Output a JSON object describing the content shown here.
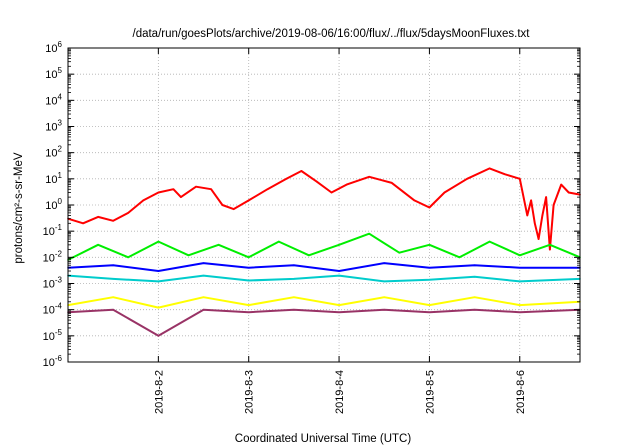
{
  "chart_data": {
    "type": "line",
    "title": "/data/run/goesPlots/archive/2019-08-06/16:00/flux/../flux/5daysMoonFluxes.txt",
    "xlabel": "Coordinated Universal Time (UTC)",
    "ylabel": "protons/cm²-s-sr-MeV",
    "yscale": "log",
    "ylim": [
      1e-06,
      1000000
    ],
    "xlim": [
      "2019-08-01 00:00",
      "2019-08-06 16:00"
    ],
    "grid": true,
    "x_ticks": [
      "2019-8-2",
      "2019-8-3",
      "2019-8-4",
      "2019-8-5",
      "2019-8-6"
    ],
    "y_ticks": [
      {
        "base": "10",
        "exp": "6"
      },
      {
        "base": "10",
        "exp": "5"
      },
      {
        "base": "10",
        "exp": "4"
      },
      {
        "base": "10",
        "exp": "3"
      },
      {
        "base": "10",
        "exp": "2"
      },
      {
        "base": "10",
        "exp": "1"
      },
      {
        "base": "10",
        "exp": "0"
      },
      {
        "base": "10",
        "exp": "-1"
      },
      {
        "base": "10",
        "exp": "-2"
      },
      {
        "base": "10",
        "exp": "-3"
      },
      {
        "base": "10",
        "exp": "-4"
      },
      {
        "base": "10",
        "exp": "-5"
      },
      {
        "base": "10",
        "exp": "-6"
      }
    ],
    "series": [
      {
        "color": "#ff0000",
        "values": [
          {
            "x": "2019-08-01 00:00",
            "y": 0.3
          },
          {
            "x": "2019-08-01 04:00",
            "y": 0.2
          },
          {
            "x": "2019-08-01 08:00",
            "y": 0.35
          },
          {
            "x": "2019-08-01 12:00",
            "y": 0.25
          },
          {
            "x": "2019-08-01 16:00",
            "y": 0.5
          },
          {
            "x": "2019-08-01 20:00",
            "y": 1.5
          },
          {
            "x": "2019-08-02 00:00",
            "y": 3
          },
          {
            "x": "2019-08-02 04:00",
            "y": 4
          },
          {
            "x": "2019-08-02 06:00",
            "y": 2
          },
          {
            "x": "2019-08-02 10:00",
            "y": 5
          },
          {
            "x": "2019-08-02 14:00",
            "y": 4
          },
          {
            "x": "2019-08-02 17:00",
            "y": 1
          },
          {
            "x": "2019-08-02 20:00",
            "y": 0.7
          },
          {
            "x": "2019-08-03 00:00",
            "y": 1.5
          },
          {
            "x": "2019-08-03 05:00",
            "y": 4
          },
          {
            "x": "2019-08-03 10:00",
            "y": 10
          },
          {
            "x": "2019-08-03 14:00",
            "y": 20
          },
          {
            "x": "2019-08-03 18:00",
            "y": 8
          },
          {
            "x": "2019-08-03 22:00",
            "y": 3
          },
          {
            "x": "2019-08-04 02:00",
            "y": 6
          },
          {
            "x": "2019-08-04 08:00",
            "y": 12
          },
          {
            "x": "2019-08-04 14:00",
            "y": 7
          },
          {
            "x": "2019-08-04 20:00",
            "y": 1.5
          },
          {
            "x": "2019-08-05 00:00",
            "y": 0.8
          },
          {
            "x": "2019-08-05 04:00",
            "y": 3
          },
          {
            "x": "2019-08-05 10:00",
            "y": 10
          },
          {
            "x": "2019-08-05 16:00",
            "y": 25
          },
          {
            "x": "2019-08-05 20:00",
            "y": 15
          },
          {
            "x": "2019-08-06 00:00",
            "y": 10
          },
          {
            "x": "2019-08-06 02:00",
            "y": 0.4
          },
          {
            "x": "2019-08-06 03:00",
            "y": 1.5
          },
          {
            "x": "2019-08-06 04:00",
            "y": 0.2
          },
          {
            "x": "2019-08-06 05:00",
            "y": 0.05
          },
          {
            "x": "2019-08-06 06:00",
            "y": 0.4
          },
          {
            "x": "2019-08-06 07:00",
            "y": 2
          },
          {
            "x": "2019-08-06 08:00",
            "y": 0.02
          },
          {
            "x": "2019-08-06 09:00",
            "y": 1
          },
          {
            "x": "2019-08-06 11:00",
            "y": 6
          },
          {
            "x": "2019-08-06 13:00",
            "y": 3
          },
          {
            "x": "2019-08-06 16:00",
            "y": 2.5
          }
        ]
      },
      {
        "color": "#00ee00",
        "values": [
          {
            "x": "2019-08-01 00:00",
            "y": 0.008
          },
          {
            "x": "2019-08-01 08:00",
            "y": 0.03
          },
          {
            "x": "2019-08-01 16:00",
            "y": 0.01
          },
          {
            "x": "2019-08-02 00:00",
            "y": 0.04
          },
          {
            "x": "2019-08-02 08:00",
            "y": 0.012
          },
          {
            "x": "2019-08-02 16:00",
            "y": 0.03
          },
          {
            "x": "2019-08-03 00:00",
            "y": 0.01
          },
          {
            "x": "2019-08-03 08:00",
            "y": 0.04
          },
          {
            "x": "2019-08-03 16:00",
            "y": 0.012
          },
          {
            "x": "2019-08-04 00:00",
            "y": 0.03
          },
          {
            "x": "2019-08-04 08:00",
            "y": 0.08
          },
          {
            "x": "2019-08-04 16:00",
            "y": 0.015
          },
          {
            "x": "2019-08-05 00:00",
            "y": 0.03
          },
          {
            "x": "2019-08-05 08:00",
            "y": 0.01
          },
          {
            "x": "2019-08-05 16:00",
            "y": 0.04
          },
          {
            "x": "2019-08-06 00:00",
            "y": 0.012
          },
          {
            "x": "2019-08-06 08:00",
            "y": 0.03
          },
          {
            "x": "2019-08-06 16:00",
            "y": 0.01
          }
        ]
      },
      {
        "color": "#00cccc",
        "values": [
          {
            "x": "2019-08-01 00:00",
            "y": 0.002
          },
          {
            "x": "2019-08-01 12:00",
            "y": 0.0015
          },
          {
            "x": "2019-08-02 00:00",
            "y": 0.0012
          },
          {
            "x": "2019-08-02 12:00",
            "y": 0.002
          },
          {
            "x": "2019-08-03 00:00",
            "y": 0.0013
          },
          {
            "x": "2019-08-03 12:00",
            "y": 0.0015
          },
          {
            "x": "2019-08-04 00:00",
            "y": 0.002
          },
          {
            "x": "2019-08-04 12:00",
            "y": 0.0012
          },
          {
            "x": "2019-08-05 00:00",
            "y": 0.0014
          },
          {
            "x": "2019-08-05 12:00",
            "y": 0.0018
          },
          {
            "x": "2019-08-06 00:00",
            "y": 0.0012
          },
          {
            "x": "2019-08-06 16:00",
            "y": 0.0015
          }
        ]
      },
      {
        "color": "#0000ff",
        "values": [
          {
            "x": "2019-08-01 00:00",
            "y": 0.004
          },
          {
            "x": "2019-08-01 12:00",
            "y": 0.005
          },
          {
            "x": "2019-08-02 00:00",
            "y": 0.003
          },
          {
            "x": "2019-08-02 12:00",
            "y": 0.006
          },
          {
            "x": "2019-08-03 00:00",
            "y": 0.004
          },
          {
            "x": "2019-08-03 12:00",
            "y": 0.005
          },
          {
            "x": "2019-08-04 00:00",
            "y": 0.003
          },
          {
            "x": "2019-08-04 12:00",
            "y": 0.006
          },
          {
            "x": "2019-08-05 00:00",
            "y": 0.004
          },
          {
            "x": "2019-08-05 12:00",
            "y": 0.005
          },
          {
            "x": "2019-08-06 00:00",
            "y": 0.004
          },
          {
            "x": "2019-08-06 16:00",
            "y": 0.004
          }
        ]
      },
      {
        "color": "#ffff00",
        "values": [
          {
            "x": "2019-08-01 00:00",
            "y": 0.00015
          },
          {
            "x": "2019-08-01 12:00",
            "y": 0.0003
          },
          {
            "x": "2019-08-02 00:00",
            "y": 0.00012
          },
          {
            "x": "2019-08-02 12:00",
            "y": 0.0003
          },
          {
            "x": "2019-08-03 00:00",
            "y": 0.00015
          },
          {
            "x": "2019-08-03 12:00",
            "y": 0.0003
          },
          {
            "x": "2019-08-04 00:00",
            "y": 0.00015
          },
          {
            "x": "2019-08-04 12:00",
            "y": 0.0003
          },
          {
            "x": "2019-08-05 00:00",
            "y": 0.00015
          },
          {
            "x": "2019-08-05 12:00",
            "y": 0.0003
          },
          {
            "x": "2019-08-06 00:00",
            "y": 0.00015
          },
          {
            "x": "2019-08-06 16:00",
            "y": 0.0002
          }
        ]
      },
      {
        "color": "#993366",
        "values": [
          {
            "x": "2019-08-01 00:00",
            "y": 8e-05
          },
          {
            "x": "2019-08-01 12:00",
            "y": 0.0001
          },
          {
            "x": "2019-08-02 00:00",
            "y": 1e-05
          },
          {
            "x": "2019-08-02 12:00",
            "y": 0.0001
          },
          {
            "x": "2019-08-03 00:00",
            "y": 8e-05
          },
          {
            "x": "2019-08-03 12:00",
            "y": 0.0001
          },
          {
            "x": "2019-08-04 00:00",
            "y": 8e-05
          },
          {
            "x": "2019-08-04 12:00",
            "y": 0.0001
          },
          {
            "x": "2019-08-05 00:00",
            "y": 8e-05
          },
          {
            "x": "2019-08-05 12:00",
            "y": 0.0001
          },
          {
            "x": "2019-08-06 00:00",
            "y": 8e-05
          },
          {
            "x": "2019-08-06 16:00",
            "y": 0.0001
          }
        ]
      }
    ]
  }
}
